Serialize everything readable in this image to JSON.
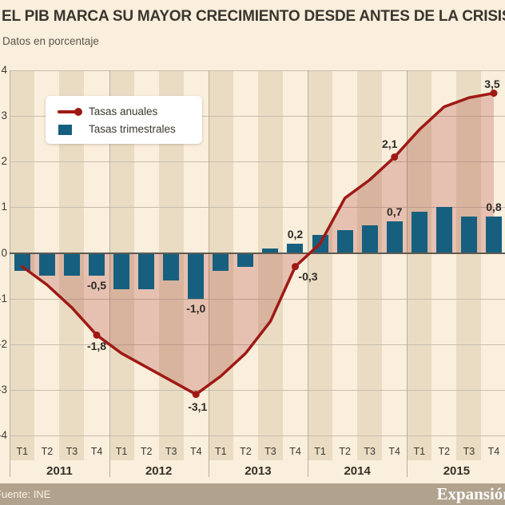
{
  "title": "EL PIB MARCA SU MAYOR CRECIMIENTO DESDE ANTES DE LA CRISIS",
  "subtitle": "Datos en porcentaje",
  "footer": {
    "source": "Fuente: INE",
    "brand": "Expansión"
  },
  "legend": [
    {
      "label": "Tasas anuales",
      "type": "line"
    },
    {
      "label": "Tasas trimestrales",
      "type": "bar"
    }
  ],
  "colors": {
    "line": "#9f1914",
    "bar": "#175f7e",
    "area_fill": "rgba(158,28,22,0.21)",
    "background": "#faeedc",
    "stripe": "#e9dcc3",
    "grid": "#c7beac",
    "zero_axis": "#5f5b52",
    "footer_background": "#b1a28d",
    "legend_background": "#ffffff"
  },
  "chart_data": {
    "type": "combo",
    "title": "EL PIB MARCA SU MAYOR CRECIMIENTO DESDE ANTES DE LA CRISIS",
    "subtitle": "Datos en porcentaje",
    "xlabel": "",
    "ylabel": "",
    "ylim": [
      -4,
      4
    ],
    "yticks": [
      4,
      3,
      2,
      1,
      0,
      -1,
      -2,
      -3,
      -4
    ],
    "grid": true,
    "legend_position": "top-left",
    "years": [
      "2011",
      "2012",
      "2013",
      "2014",
      "2015"
    ],
    "quarter_labels": [
      "T1",
      "T2",
      "T3",
      "T4"
    ],
    "series": [
      {
        "name": "Tasas anuales",
        "type": "line",
        "color": "#9f1914",
        "values": [
          -0.3,
          -0.7,
          -1.2,
          -1.8,
          -2.2,
          -2.5,
          -2.8,
          -3.1,
          -2.7,
          -2.2,
          -1.5,
          -0.3,
          0.2,
          1.2,
          1.6,
          2.1,
          2.7,
          3.2,
          3.4,
          3.5
        ],
        "marker_indices": [
          3,
          7,
          11,
          15,
          19
        ],
        "labels": [
          {
            "i": 3,
            "text": "-1,8",
            "dx": 0,
            "dy": 6
          },
          {
            "i": 7,
            "text": "-3,1",
            "dx": 2,
            "dy": 7
          },
          {
            "i": 11,
            "text": "-0,3",
            "dx": 16,
            "dy": 4
          },
          {
            "i": 15,
            "text": "2,1",
            "dx": -6,
            "dy": -25
          },
          {
            "i": 19,
            "text": "3,5",
            "dx": -2,
            "dy": -20
          }
        ]
      },
      {
        "name": "Tasas trimestrales",
        "type": "bar",
        "color": "#175f7e",
        "values": [
          -0.4,
          -0.5,
          -0.5,
          -0.5,
          -0.8,
          -0.8,
          -0.6,
          -1.0,
          -0.4,
          -0.3,
          0.1,
          0.2,
          0.4,
          0.5,
          0.6,
          0.7,
          0.9,
          1.0,
          0.8,
          0.8
        ],
        "labels": [
          {
            "i": 3,
            "text": "-0,5"
          },
          {
            "i": 7,
            "text": "-1,0"
          },
          {
            "i": 11,
            "text": "0,2"
          },
          {
            "i": 15,
            "text": "0,7"
          },
          {
            "i": 19,
            "text": "0,8"
          }
        ]
      }
    ]
  }
}
